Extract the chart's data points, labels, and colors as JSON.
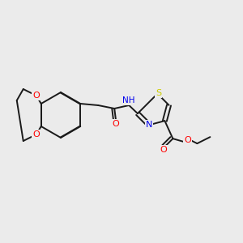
{
  "background_color": "#ebebeb",
  "bond_color": "#1a1a1a",
  "colors": {
    "O": "#ff0000",
    "N": "#0000ee",
    "S": "#cccc00",
    "H": "#008888",
    "C": "#1a1a1a"
  },
  "font_size": 7.5,
  "lw": 1.4
}
